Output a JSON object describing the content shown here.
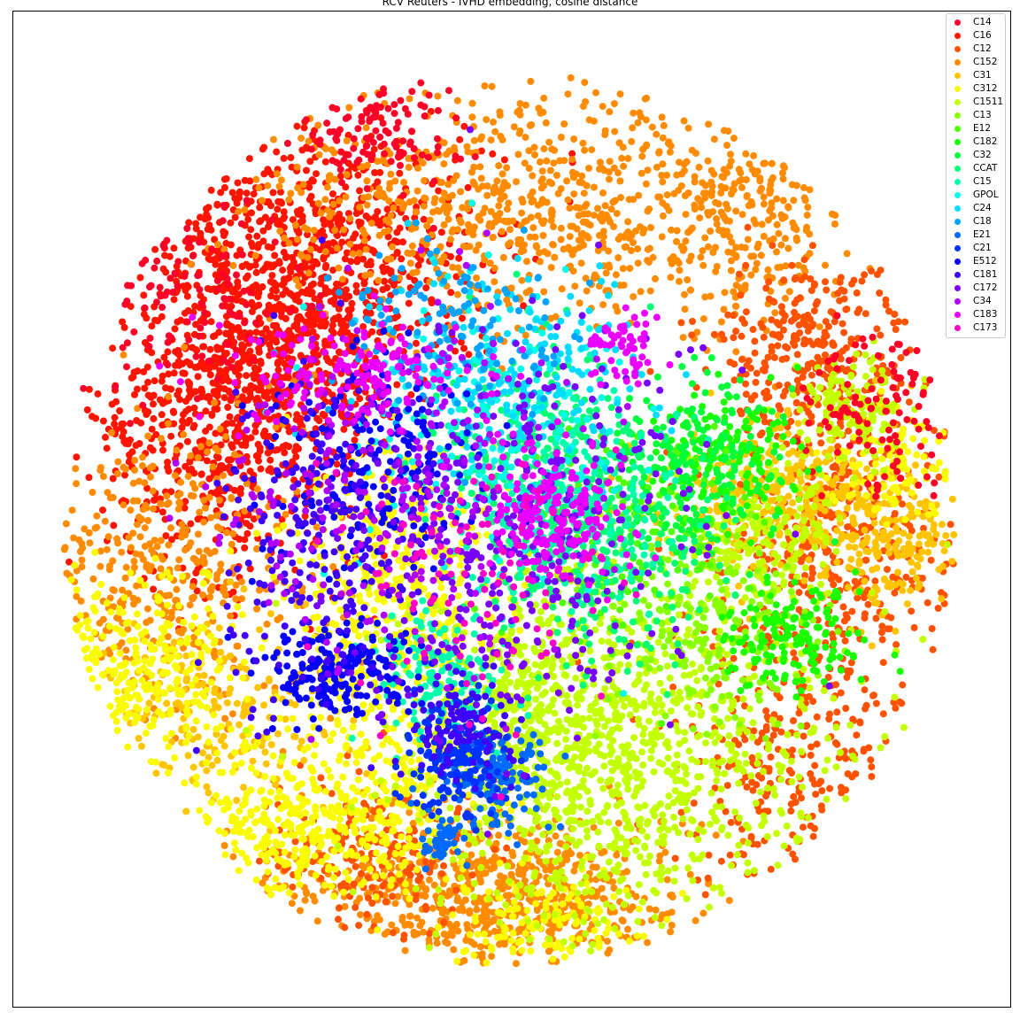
{
  "chart_data": {
    "type": "scatter",
    "title": "RCV Reuters - IVHD embedding, cosine distance",
    "xlabel": "",
    "ylabel": "",
    "show_ticks": false,
    "grid": false,
    "legend_position": "upper-right",
    "series": [
      {
        "name": "C14",
        "color": "#ff0029"
      },
      {
        "name": "C16",
        "color": "#ff1400"
      },
      {
        "name": "C12",
        "color": "#ff5200"
      },
      {
        "name": "C152",
        "color": "#ff8b00"
      },
      {
        "name": "C31",
        "color": "#ffc400"
      },
      {
        "name": "C312",
        "color": "#fbfb00"
      },
      {
        "name": "C1511",
        "color": "#c3ff00"
      },
      {
        "name": "C13",
        "color": "#8aff00"
      },
      {
        "name": "E12",
        "color": "#52ff00"
      },
      {
        "name": "C182",
        "color": "#19ff00"
      },
      {
        "name": "C32",
        "color": "#00ff3a"
      },
      {
        "name": "CCAT",
        "color": "#00ff74"
      },
      {
        "name": "C15",
        "color": "#00ffad"
      },
      {
        "name": "GPOL",
        "color": "#00ffe6"
      },
      {
        "name": "C24",
        "color": "#00dcff"
      },
      {
        "name": "C18",
        "color": "#00a3ff"
      },
      {
        "name": "E21",
        "color": "#006aff"
      },
      {
        "name": "C21",
        "color": "#0032ff"
      },
      {
        "name": "E512",
        "color": "#0600ff"
      },
      {
        "name": "C181",
        "color": "#3f00ff"
      },
      {
        "name": "C172",
        "color": "#7800ff"
      },
      {
        "name": "C34",
        "color": "#b100ff"
      },
      {
        "name": "C183",
        "color": "#ea00ff"
      },
      {
        "name": "C173",
        "color": "#ff00c4"
      }
    ]
  }
}
